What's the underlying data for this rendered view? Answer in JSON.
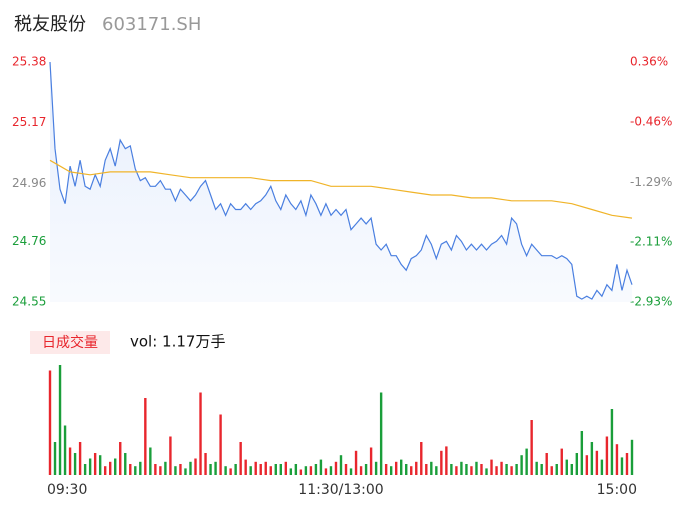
{
  "chart_data": [
    {
      "type": "line",
      "title": "税友股份",
      "subtitle": "603171.SH",
      "xlim": [
        0,
        240
      ],
      "ylim": [
        24.55,
        25.38
      ],
      "yticks": [
        24.55,
        24.76,
        24.96,
        25.17,
        25.38
      ],
      "y2lim": [
        -2.93,
        0.36
      ],
      "y2ticks": [
        {
          "value": -2.93,
          "label": "-2.93%"
        },
        {
          "value": -2.11,
          "label": "-2.11%"
        },
        {
          "value": -1.29,
          "label": "-1.29%"
        },
        {
          "value": -0.46,
          "label": "-0.46%"
        },
        {
          "value": 0.36,
          "label": "0.36%"
        }
      ],
      "up_color": "#e8262d",
      "down_color": "#1a9e3a",
      "flat_color": "#888888",
      "series": [
        {
          "color": "#4a7fe0",
          "values": [
            25.38,
            25.08,
            24.94,
            24.89,
            25.02,
            24.95,
            25.04,
            24.95,
            24.94,
            24.99,
            24.95,
            25.04,
            25.08,
            25.02,
            25.11,
            25.08,
            25.09,
            25.01,
            24.97,
            24.98,
            24.95,
            24.95,
            24.97,
            24.94,
            24.94,
            24.9,
            24.94,
            24.92,
            24.9,
            24.92,
            24.95,
            24.97,
            24.92,
            24.87,
            24.89,
            24.85,
            24.89,
            24.87,
            24.87,
            24.89,
            24.87,
            24.89,
            24.9,
            24.92,
            24.95,
            24.9,
            24.87,
            24.92,
            24.89,
            24.87,
            24.9,
            24.85,
            24.92,
            24.89,
            24.85,
            24.89,
            24.85,
            24.87,
            24.85,
            24.87,
            24.8,
            24.82,
            24.84,
            24.82,
            24.84,
            24.75,
            24.73,
            24.75,
            24.71,
            24.71,
            24.68,
            24.66,
            24.7,
            24.71,
            24.73,
            24.78,
            24.75,
            24.7,
            24.75,
            24.76,
            24.73,
            24.78,
            24.76,
            24.73,
            24.75,
            24.73,
            24.75,
            24.73,
            24.75,
            24.76,
            24.78,
            24.75,
            24.84,
            24.82,
            24.75,
            24.71,
            24.75,
            24.73,
            24.71,
            24.71,
            24.71,
            24.7,
            24.71,
            24.7,
            24.68,
            24.57,
            24.56,
            24.57,
            24.56,
            24.59,
            24.57,
            24.61,
            24.59,
            24.68,
            24.59,
            24.66,
            24.61
          ]
        },
        {
          "color": "#f0b429",
          "values": [
            25.04,
            25.0,
            24.99,
            25.0,
            25.0,
            25.0,
            24.99,
            24.98,
            24.98,
            24.98,
            24.98,
            24.97,
            24.97,
            24.97,
            24.95,
            24.95,
            24.95,
            24.94,
            24.93,
            24.92,
            24.92,
            24.91,
            24.91,
            24.9,
            24.9,
            24.9,
            24.89,
            24.87,
            24.85,
            24.84
          ]
        }
      ]
    },
    {
      "type": "bar",
      "title": "日成交量",
      "subtitle": "vol: 1.17万手",
      "xlim": [
        0,
        240
      ],
      "xticks": [
        {
          "value": 0,
          "label": "09:30"
        },
        {
          "value": 120,
          "label": "11:30/13:00"
        },
        {
          "value": 240,
          "label": "15:00"
        }
      ],
      "ylim": [
        0,
        100
      ],
      "values": [
        95,
        30,
        100,
        45,
        25,
        20,
        30,
        10,
        15,
        20,
        18,
        8,
        12,
        15,
        30,
        20,
        10,
        8,
        12,
        70,
        25,
        10,
        8,
        12,
        35,
        8,
        10,
        6,
        12,
        15,
        75,
        20,
        10,
        12,
        55,
        8,
        6,
        10,
        30,
        14,
        8,
        12,
        10,
        12,
        8,
        10,
        10,
        12,
        6,
        10,
        5,
        8,
        8,
        10,
        14,
        6,
        8,
        12,
        18,
        10,
        6,
        22,
        8,
        10,
        25,
        12,
        75,
        10,
        8,
        12,
        14,
        10,
        8,
        12,
        30,
        10,
        12,
        8,
        22,
        26,
        10,
        8,
        12,
        10,
        8,
        12,
        10,
        6,
        14,
        8,
        12,
        10,
        8,
        10,
        18,
        24,
        50,
        12,
        10,
        20,
        8,
        10,
        24,
        14,
        10,
        20,
        40,
        18,
        30,
        22,
        14,
        35,
        60,
        28,
        16,
        20,
        32
      ]
    }
  ]
}
